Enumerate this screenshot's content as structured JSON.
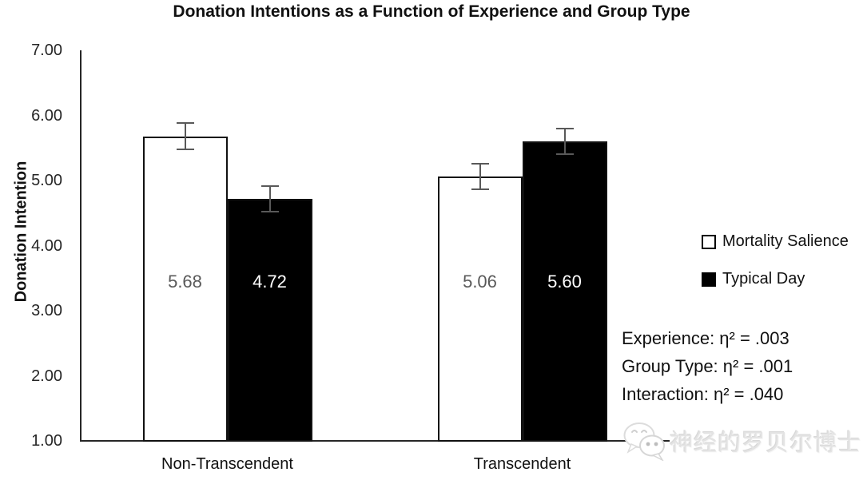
{
  "title": "Donation Intentions as a Function of Experience and Group Type",
  "chart_data": {
    "type": "bar",
    "title": "Donation Intentions as a Function of Experience and Group Type",
    "xlabel": "",
    "ylabel": "Donation Intention",
    "ylim": [
      1.0,
      7.0
    ],
    "y_ticks": [
      "7.00",
      "6.00",
      "5.00",
      "4.00",
      "3.00",
      "2.00",
      "1.00"
    ],
    "grid": false,
    "legend_position": "right",
    "categories": [
      "Non-Transcendent",
      "Transcendent"
    ],
    "series": [
      {
        "name": "Mortality Salience",
        "values": [
          5.68,
          5.06
        ],
        "value_labels": [
          "5.68",
          "5.06"
        ],
        "errors": [
          0.2,
          0.2
        ],
        "fill": "#ffffff",
        "label_color": "#595959"
      },
      {
        "name": "Typical Day",
        "values": [
          4.72,
          5.6
        ],
        "value_labels": [
          "4.72",
          "5.60"
        ],
        "errors": [
          0.2,
          0.2
        ],
        "fill": "#000000",
        "label_color": "#ffffff"
      }
    ],
    "annotations": [
      "Experience: η² = .003",
      "Group Type: η² = .001",
      "Interaction: η² = .040"
    ]
  },
  "watermark": {
    "text": "神经的罗贝尔博士",
    "icon": "wechat-icon"
  },
  "colors": {
    "bar_outline": "#111111",
    "error_bar": "#595959",
    "axis": "#262626",
    "gray_label": "#595959",
    "watermark": "#e3e3e3"
  }
}
